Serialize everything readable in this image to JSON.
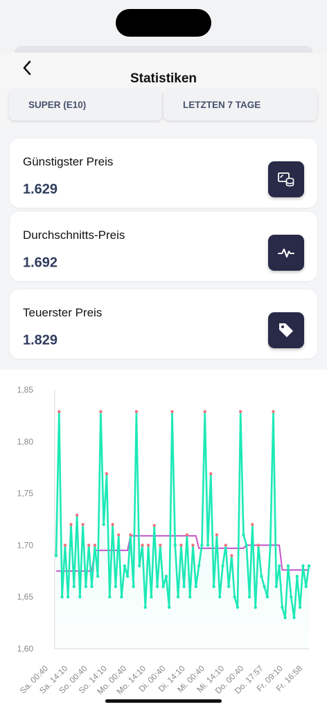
{
  "header": {
    "title": "Statistiken"
  },
  "filters": {
    "fuel": "SUPER (E10)",
    "period": "LETZTEN 7 TAGE"
  },
  "cards": [
    {
      "label": "Günstigster Preis",
      "value": "1.629",
      "icon": "database-icon"
    },
    {
      "label": "Durchschnitts-Preis",
      "value": "1.692",
      "icon": "activity-icon"
    },
    {
      "label": "Teuerster Preis",
      "value": "1.829",
      "icon": "price-tag-icon"
    }
  ],
  "colors": {
    "accent_dark": "#282a48",
    "price_line": "#1de9b6",
    "avg_line": "#c455c9",
    "peak_dot": "#f2727f",
    "card_value": "#2f3c5e"
  },
  "chart_data": {
    "type": "line",
    "y_ticks": [
      "1,85",
      "1,80",
      "1,75",
      "1,70",
      "1,65",
      "1,60"
    ],
    "ylim": [
      1.6,
      1.85
    ],
    "x_ticks": [
      "Sa. 00:40",
      "Sa. 14:10",
      "So. 00:40",
      "So. 14:10",
      "Mo. 00:40",
      "Mo. 14:10",
      "Di. 00:40",
      "Di. 14:10",
      "Mi. 00:40",
      "Mi. 14:10",
      "Do. 00:40",
      "Do. 17:57",
      "Fr. 09:10",
      "Fr. 16:58"
    ],
    "series": [
      {
        "values": [
          1.69,
          1.829,
          1.65,
          1.7,
          1.65,
          1.72,
          1.66,
          1.729,
          1.65,
          1.72,
          1.66,
          1.7,
          1.66,
          1.7,
          1.67,
          1.829,
          1.72,
          1.769,
          1.65,
          1.72,
          1.66,
          1.71,
          1.65,
          1.68,
          1.67,
          1.71,
          1.66,
          1.829,
          1.68,
          1.7,
          1.64,
          1.7,
          1.65,
          1.719,
          1.66,
          1.7,
          1.66,
          1.67,
          1.64,
          1.829,
          1.7,
          1.65,
          1.7,
          1.66,
          1.71,
          1.65,
          1.7,
          1.66,
          1.68,
          1.7,
          1.829,
          1.7,
          1.769,
          1.66,
          1.71,
          1.65,
          1.68,
          1.7,
          1.66,
          1.69,
          1.65,
          1.64,
          1.829,
          1.71,
          1.7,
          1.65,
          1.72,
          1.64,
          1.7,
          1.67,
          1.66,
          1.65,
          1.7,
          1.829,
          1.66,
          1.68,
          1.64,
          1.63,
          1.68,
          1.65,
          1.63,
          1.67,
          1.64,
          1.68,
          1.66,
          1.68
        ]
      },
      {
        "values": [
          1.675,
          1.675,
          1.675,
          1.675,
          1.675,
          1.675,
          1.675,
          1.675,
          1.675,
          1.675,
          1.675,
          1.675,
          1.675,
          1.695,
          1.695,
          1.695,
          1.695,
          1.695,
          1.695,
          1.695,
          1.695,
          1.695,
          1.695,
          1.695,
          1.695,
          1.709,
          1.709,
          1.709,
          1.709,
          1.709,
          1.709,
          1.709,
          1.709,
          1.709,
          1.709,
          1.709,
          1.709,
          1.709,
          1.709,
          1.709,
          1.709,
          1.709,
          1.709,
          1.709,
          1.709,
          1.709,
          1.709,
          1.709,
          1.697,
          1.697,
          1.697,
          1.697,
          1.697,
          1.697,
          1.697,
          1.697,
          1.697,
          1.697,
          1.697,
          1.697,
          1.697,
          1.697,
          1.697,
          1.697,
          1.7,
          1.7,
          1.7,
          1.7,
          1.7,
          1.7,
          1.7,
          1.7,
          1.7,
          1.7,
          1.7,
          1.7,
          1.676,
          1.676,
          1.676,
          1.676,
          1.676,
          1.676,
          1.676,
          1.676,
          1.676,
          1.676
        ]
      }
    ]
  }
}
